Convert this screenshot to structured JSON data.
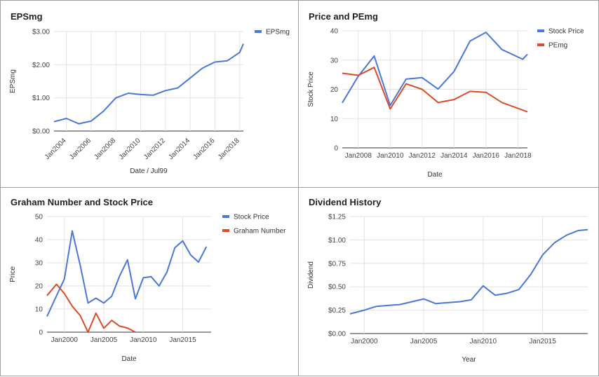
{
  "colors": {
    "blue": "#4a78d4",
    "red": "#dc4a26"
  },
  "chart_data": [
    {
      "id": "eps",
      "type": "line",
      "title": "EPSmg",
      "xlabel": "Date / Jul99",
      "ylabel": "EPSmg",
      "x_is_date": true,
      "xlim": [
        2003.0,
        2018.3
      ],
      "ylim": [
        0,
        3
      ],
      "yticks": [
        0,
        1,
        2,
        3
      ],
      "ytick_labels": [
        "$0.00",
        "$1.00",
        "$2.00",
        "$3.00"
      ],
      "xticks": [
        2004,
        2006,
        2008,
        2010,
        2012,
        2014,
        2016,
        2018
      ],
      "xtick_labels": [
        "Jan2004",
        "Jan2006",
        "Jan2008",
        "Jan2010",
        "Jan2012",
        "Jan2014",
        "Jan2016",
        "Jan2018"
      ],
      "legend_position": "top-right",
      "series": [
        {
          "name": "EPSmg",
          "color": "blue",
          "x": [
            2003.0,
            2004.0,
            2005.0,
            2006.0,
            2007.0,
            2008.0,
            2009.0,
            2010.0,
            2011.0,
            2012.0,
            2013.0,
            2014.0,
            2015.0,
            2016.0,
            2017.0,
            2018.0,
            2018.3
          ],
          "y": [
            0.28,
            0.38,
            0.22,
            0.3,
            0.6,
            1.0,
            1.14,
            1.1,
            1.08,
            1.22,
            1.3,
            1.6,
            1.9,
            2.08,
            2.12,
            2.37,
            2.63
          ]
        }
      ]
    },
    {
      "id": "pe",
      "type": "line",
      "title": "Price and PEmg",
      "xlabel": "Date",
      "ylabel": "Stock Price",
      "x_is_date": true,
      "xlim": [
        2007.0,
        2018.6
      ],
      "ylim": [
        0,
        40
      ],
      "yticks": [
        0,
        10,
        20,
        30,
        40
      ],
      "ytick_labels": [
        "0",
        "10",
        "20",
        "30",
        "40"
      ],
      "xticks": [
        2008,
        2010,
        2012,
        2014,
        2016,
        2018
      ],
      "xtick_labels": [
        "Jan2008",
        "Jan2010",
        "Jan2012",
        "Jan2014",
        "Jan2016",
        "Jan2018"
      ],
      "legend_position": "top-right",
      "series": [
        {
          "name": "Stock Price",
          "color": "blue",
          "x": [
            2007.0,
            2008.0,
            2009.0,
            2010.0,
            2011.0,
            2012.0,
            2013.0,
            2014.0,
            2015.0,
            2016.0,
            2017.0,
            2018.3,
            2018.6
          ],
          "y": [
            15.4,
            24.5,
            31.4,
            14.5,
            23.5,
            24.0,
            20.1,
            26.1,
            36.5,
            39.5,
            33.6,
            30.3,
            32.0
          ]
        },
        {
          "name": "PEmg",
          "color": "red",
          "x": [
            2007.0,
            2008.0,
            2009.0,
            2010.0,
            2011.0,
            2012.0,
            2013.0,
            2014.0,
            2015.0,
            2016.0,
            2017.0,
            2018.6
          ],
          "y": [
            25.5,
            24.8,
            27.5,
            13.3,
            21.9,
            20.0,
            15.5,
            16.5,
            19.3,
            19.0,
            15.5,
            12.3
          ]
        }
      ]
    },
    {
      "id": "graham",
      "type": "line",
      "title": "Graham Number and Stock Price",
      "xlabel": "Date",
      "ylabel": "Price",
      "x_is_date": true,
      "xlim": [
        1997.8,
        2018.6
      ],
      "ylim": [
        0,
        50
      ],
      "yticks": [
        0,
        10,
        20,
        30,
        40,
        50
      ],
      "ytick_labels": [
        "0",
        "10",
        "20",
        "30",
        "40",
        "50"
      ],
      "xticks": [
        2000,
        2005,
        2010,
        2015
      ],
      "xtick_labels": [
        "Jan2000",
        "Jan2005",
        "Jan2010",
        "Jan2015"
      ],
      "legend_position": "top-right",
      "series": [
        {
          "name": "Stock Price",
          "color": "blue",
          "x": [
            1997.8,
            1999.0,
            2000.0,
            2001.0,
            2002.0,
            2003.0,
            2004.0,
            2005.0,
            2006.0,
            2007.0,
            2008.0,
            2009.0,
            2010.0,
            2011.0,
            2012.0,
            2013.0,
            2014.0,
            2015.0,
            2016.0,
            2017.0,
            2018.0
          ],
          "y": [
            6.8,
            15.7,
            23.0,
            43.8,
            29.0,
            12.6,
            14.7,
            12.6,
            15.5,
            24.3,
            31.3,
            14.4,
            23.5,
            24.0,
            20.0,
            26.0,
            36.5,
            39.5,
            33.4,
            30.3,
            37.0
          ]
        },
        {
          "name": "Graham Number",
          "color": "red",
          "x": [
            1997.8,
            1999.0,
            2000.0,
            2001.0,
            2002.0,
            2003.0,
            2004.0,
            2005.0,
            2006.0,
            2007.0,
            2008.0,
            2009.0
          ],
          "y": [
            15.8,
            20.7,
            16.7,
            11.2,
            7.2,
            0.0,
            8.2,
            1.7,
            5.1,
            2.6,
            1.8,
            0.0
          ]
        }
      ]
    },
    {
      "id": "dividend",
      "type": "line",
      "title": "Dividend History",
      "xlabel": "Year",
      "ylabel": "Dividend",
      "x_is_date": true,
      "xlim": [
        1998.8,
        2018.8
      ],
      "ylim": [
        0,
        1.25
      ],
      "yticks": [
        0,
        0.25,
        0.5,
        0.75,
        1.0,
        1.25
      ],
      "ytick_labels": [
        "$0.00",
        "$0.25",
        "$0.50",
        "$0.75",
        "$1.00",
        "$1.25"
      ],
      "xticks": [
        2000,
        2005,
        2010,
        2015
      ],
      "xtick_labels": [
        "Jan2000",
        "Jan2005",
        "Jan2010",
        "Jan2015"
      ],
      "legend_position": "none",
      "series": [
        {
          "name": "",
          "color": "blue",
          "x": [
            1998.8,
            2000.0,
            2001.0,
            2002.0,
            2003.0,
            2004.0,
            2005.0,
            2006.0,
            2007.0,
            2008.0,
            2009.0,
            2010.0,
            2011.0,
            2012.0,
            2013.0,
            2014.0,
            2015.0,
            2016.0,
            2017.0,
            2018.0,
            2018.8
          ],
          "y": [
            0.21,
            0.25,
            0.29,
            0.3,
            0.31,
            0.34,
            0.37,
            0.32,
            0.33,
            0.34,
            0.36,
            0.51,
            0.41,
            0.43,
            0.47,
            0.63,
            0.84,
            0.97,
            1.05,
            1.1,
            1.11
          ]
        }
      ]
    }
  ]
}
